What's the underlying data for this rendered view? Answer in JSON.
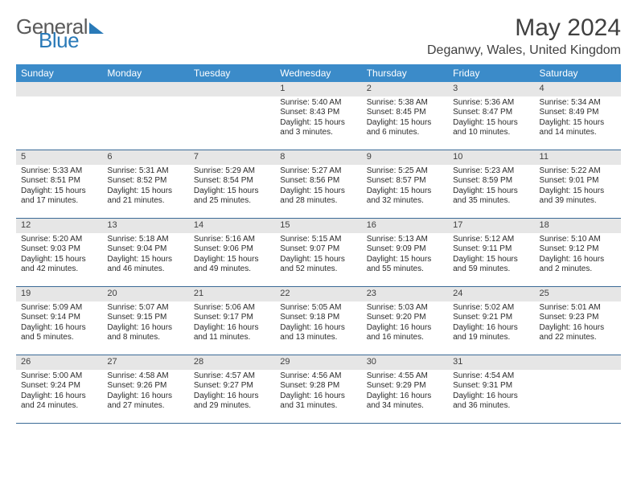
{
  "brand": {
    "part1": "General",
    "part2": "Blue"
  },
  "title": "May 2024",
  "location": "Deganwy, Wales, United Kingdom",
  "colors": {
    "header_bg": "#3b8bc9",
    "header_text": "#ffffff",
    "daynum_bg": "#e6e6e6",
    "row_border": "#3b6a96",
    "body_text": "#2b2b2b",
    "title_text": "#404040",
    "brand_blue": "#2a7ab8",
    "brand_gray": "#5a5a5a"
  },
  "daysOfWeek": [
    "Sunday",
    "Monday",
    "Tuesday",
    "Wednesday",
    "Thursday",
    "Friday",
    "Saturday"
  ],
  "weeks": [
    [
      null,
      null,
      null,
      {
        "n": "1",
        "sr": "5:40 AM",
        "ss": "8:43 PM",
        "dl": "15 hours and 3 minutes."
      },
      {
        "n": "2",
        "sr": "5:38 AM",
        "ss": "8:45 PM",
        "dl": "15 hours and 6 minutes."
      },
      {
        "n": "3",
        "sr": "5:36 AM",
        "ss": "8:47 PM",
        "dl": "15 hours and 10 minutes."
      },
      {
        "n": "4",
        "sr": "5:34 AM",
        "ss": "8:49 PM",
        "dl": "15 hours and 14 minutes."
      }
    ],
    [
      {
        "n": "5",
        "sr": "5:33 AM",
        "ss": "8:51 PM",
        "dl": "15 hours and 17 minutes."
      },
      {
        "n": "6",
        "sr": "5:31 AM",
        "ss": "8:52 PM",
        "dl": "15 hours and 21 minutes."
      },
      {
        "n": "7",
        "sr": "5:29 AM",
        "ss": "8:54 PM",
        "dl": "15 hours and 25 minutes."
      },
      {
        "n": "8",
        "sr": "5:27 AM",
        "ss": "8:56 PM",
        "dl": "15 hours and 28 minutes."
      },
      {
        "n": "9",
        "sr": "5:25 AM",
        "ss": "8:57 PM",
        "dl": "15 hours and 32 minutes."
      },
      {
        "n": "10",
        "sr": "5:23 AM",
        "ss": "8:59 PM",
        "dl": "15 hours and 35 minutes."
      },
      {
        "n": "11",
        "sr": "5:22 AM",
        "ss": "9:01 PM",
        "dl": "15 hours and 39 minutes."
      }
    ],
    [
      {
        "n": "12",
        "sr": "5:20 AM",
        "ss": "9:03 PM",
        "dl": "15 hours and 42 minutes."
      },
      {
        "n": "13",
        "sr": "5:18 AM",
        "ss": "9:04 PM",
        "dl": "15 hours and 46 minutes."
      },
      {
        "n": "14",
        "sr": "5:16 AM",
        "ss": "9:06 PM",
        "dl": "15 hours and 49 minutes."
      },
      {
        "n": "15",
        "sr": "5:15 AM",
        "ss": "9:07 PM",
        "dl": "15 hours and 52 minutes."
      },
      {
        "n": "16",
        "sr": "5:13 AM",
        "ss": "9:09 PM",
        "dl": "15 hours and 55 minutes."
      },
      {
        "n": "17",
        "sr": "5:12 AM",
        "ss": "9:11 PM",
        "dl": "15 hours and 59 minutes."
      },
      {
        "n": "18",
        "sr": "5:10 AM",
        "ss": "9:12 PM",
        "dl": "16 hours and 2 minutes."
      }
    ],
    [
      {
        "n": "19",
        "sr": "5:09 AM",
        "ss": "9:14 PM",
        "dl": "16 hours and 5 minutes."
      },
      {
        "n": "20",
        "sr": "5:07 AM",
        "ss": "9:15 PM",
        "dl": "16 hours and 8 minutes."
      },
      {
        "n": "21",
        "sr": "5:06 AM",
        "ss": "9:17 PM",
        "dl": "16 hours and 11 minutes."
      },
      {
        "n": "22",
        "sr": "5:05 AM",
        "ss": "9:18 PM",
        "dl": "16 hours and 13 minutes."
      },
      {
        "n": "23",
        "sr": "5:03 AM",
        "ss": "9:20 PM",
        "dl": "16 hours and 16 minutes."
      },
      {
        "n": "24",
        "sr": "5:02 AM",
        "ss": "9:21 PM",
        "dl": "16 hours and 19 minutes."
      },
      {
        "n": "25",
        "sr": "5:01 AM",
        "ss": "9:23 PM",
        "dl": "16 hours and 22 minutes."
      }
    ],
    [
      {
        "n": "26",
        "sr": "5:00 AM",
        "ss": "9:24 PM",
        "dl": "16 hours and 24 minutes."
      },
      {
        "n": "27",
        "sr": "4:58 AM",
        "ss": "9:26 PM",
        "dl": "16 hours and 27 minutes."
      },
      {
        "n": "28",
        "sr": "4:57 AM",
        "ss": "9:27 PM",
        "dl": "16 hours and 29 minutes."
      },
      {
        "n": "29",
        "sr": "4:56 AM",
        "ss": "9:28 PM",
        "dl": "16 hours and 31 minutes."
      },
      {
        "n": "30",
        "sr": "4:55 AM",
        "ss": "9:29 PM",
        "dl": "16 hours and 34 minutes."
      },
      {
        "n": "31",
        "sr": "4:54 AM",
        "ss": "9:31 PM",
        "dl": "16 hours and 36 minutes."
      },
      null
    ]
  ],
  "labels": {
    "sunrise": "Sunrise: ",
    "sunset": "Sunset: ",
    "daylight": "Daylight: "
  }
}
